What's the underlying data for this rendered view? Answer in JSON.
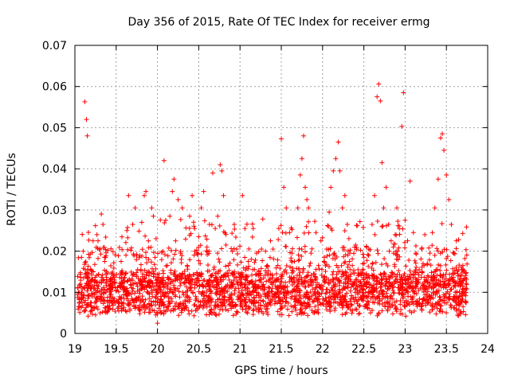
{
  "chart_data": {
    "type": "scatter",
    "title": "Day 356 of 2015, Rate Of TEC Index for receiver ermg",
    "xlabel": "GPS time / hours",
    "ylabel": "ROTI / TECUs",
    "xlim": [
      19,
      24
    ],
    "ylim": [
      0,
      0.07
    ],
    "xticks": [
      "19",
      "19.5",
      "20",
      "20.5",
      "21",
      "21.5",
      "22",
      "22.5",
      "23",
      "23.5",
      "24"
    ],
    "yticks": [
      "0",
      "0.01",
      "0.02",
      "0.03",
      "0.04",
      "0.05",
      "0.06",
      "0.07"
    ],
    "grid": true,
    "marker": "+",
    "color": "#ff0000",
    "series": [
      {
        "name": "ROTI",
        "points": [
          [
            19.03,
            0.0095
          ],
          [
            19.05,
            0.0065
          ],
          [
            19.07,
            0.012
          ],
          [
            19.08,
            0.0185
          ],
          [
            19.1,
            0.02
          ],
          [
            19.12,
            0.0563
          ],
          [
            19.14,
            0.052
          ],
          [
            19.15,
            0.048
          ],
          [
            19.17,
            0.0115
          ],
          [
            19.19,
            0.0075
          ],
          [
            19.22,
            0.0225
          ],
          [
            19.25,
            0.0105
          ],
          [
            19.28,
            0.0225
          ],
          [
            19.3,
            0.0085
          ],
          [
            19.32,
            0.029
          ],
          [
            19.34,
            0.0265
          ],
          [
            19.36,
            0.0175
          ],
          [
            19.38,
            0.0125
          ],
          [
            19.4,
            0.0065
          ],
          [
            19.43,
            0.0095
          ],
          [
            19.46,
            0.0145
          ],
          [
            19.5,
            0.0105
          ],
          [
            19.53,
            0.0065
          ],
          [
            19.56,
            0.0175
          ],
          [
            19.6,
            0.0125
          ],
          [
            19.63,
            0.025
          ],
          [
            19.65,
            0.0335
          ],
          [
            19.68,
            0.0095
          ],
          [
            19.7,
            0.0265
          ],
          [
            19.73,
            0.0305
          ],
          [
            19.76,
            0.0155
          ],
          [
            19.78,
            0.0085
          ],
          [
            19.81,
            0.027
          ],
          [
            19.84,
            0.0335
          ],
          [
            19.86,
            0.0345
          ],
          [
            19.89,
            0.0225
          ],
          [
            19.91,
            0.0125
          ],
          [
            19.93,
            0.0305
          ],
          [
            19.95,
            0.0285
          ],
          [
            19.97,
            0.0185
          ],
          [
            19.98,
            0.0045
          ],
          [
            20.0,
            0.0025
          ],
          [
            20.02,
            0.0145
          ],
          [
            20.04,
            0.009
          ],
          [
            20.06,
            0.0095
          ],
          [
            20.08,
            0.042
          ],
          [
            20.1,
            0.0275
          ],
          [
            20.12,
            0.0165
          ],
          [
            20.15,
            0.0285
          ],
          [
            20.18,
            0.0345
          ],
          [
            20.2,
            0.0375
          ],
          [
            20.22,
            0.0225
          ],
          [
            20.25,
            0.0325
          ],
          [
            20.28,
            0.0195
          ],
          [
            20.3,
            0.0305
          ],
          [
            20.33,
            0.0125
          ],
          [
            20.36,
            0.0165
          ],
          [
            20.39,
            0.0285
          ],
          [
            20.42,
            0.0335
          ],
          [
            20.45,
            0.0255
          ],
          [
            20.48,
            0.0145
          ],
          [
            20.5,
            0.0235
          ],
          [
            20.53,
            0.0305
          ],
          [
            20.56,
            0.0345
          ],
          [
            20.6,
            0.021
          ],
          [
            20.63,
            0.0265
          ],
          [
            20.67,
            0.039
          ],
          [
            20.7,
            0.0255
          ],
          [
            20.73,
            0.0285
          ],
          [
            20.76,
            0.041
          ],
          [
            20.78,
            0.0395
          ],
          [
            20.8,
            0.0335
          ],
          [
            20.83,
            0.0215
          ],
          [
            20.86,
            0.0165
          ],
          [
            20.9,
            0.0125
          ],
          [
            20.93,
            0.0265
          ],
          [
            20.96,
            0.0205
          ],
          [
            21.0,
            0.0145
          ],
          [
            21.03,
            0.0335
          ],
          [
            21.06,
            0.0255
          ],
          [
            21.1,
            0.0175
          ],
          [
            21.13,
            0.0125
          ],
          [
            21.16,
            0.0255
          ],
          [
            21.2,
            0.0195
          ],
          [
            21.23,
            0.0145
          ],
          [
            21.26,
            0.0205
          ],
          [
            21.3,
            0.0095
          ],
          [
            21.33,
            0.0165
          ],
          [
            21.37,
            0.0225
          ],
          [
            21.4,
            0.0205
          ],
          [
            21.44,
            0.0145
          ],
          [
            21.47,
            0.0255
          ],
          [
            21.5,
            0.0473
          ],
          [
            21.53,
            0.0355
          ],
          [
            21.56,
            0.0305
          ],
          [
            21.6,
            0.0245
          ],
          [
            21.63,
            0.0195
          ],
          [
            21.66,
            0.0175
          ],
          [
            21.7,
            0.0305
          ],
          [
            21.73,
            0.0385
          ],
          [
            21.75,
            0.0425
          ],
          [
            21.77,
            0.048
          ],
          [
            21.79,
            0.0355
          ],
          [
            21.81,
            0.0325
          ],
          [
            21.83,
            0.0305
          ],
          [
            21.86,
            0.0195
          ],
          [
            21.89,
            0.0145
          ],
          [
            21.92,
            0.0245
          ],
          [
            21.95,
            0.0165
          ],
          [
            21.98,
            0.0225
          ],
          [
            22.02,
            0.0185
          ],
          [
            22.05,
            0.0205
          ],
          [
            22.08,
            0.0295
          ],
          [
            22.1,
            0.0355
          ],
          [
            22.13,
            0.0395
          ],
          [
            22.16,
            0.0425
          ],
          [
            22.19,
            0.0465
          ],
          [
            22.21,
            0.0395
          ],
          [
            22.24,
            0.0305
          ],
          [
            22.27,
            0.0335
          ],
          [
            22.3,
            0.0265
          ],
          [
            22.33,
            0.0195
          ],
          [
            22.36,
            0.0165
          ],
          [
            22.4,
            0.0215
          ],
          [
            22.43,
            0.0155
          ],
          [
            22.46,
            0.0125
          ],
          [
            22.5,
            0.0185
          ],
          [
            22.53,
            0.0145
          ],
          [
            22.56,
            0.0205
          ],
          [
            22.6,
            0.0265
          ],
          [
            22.63,
            0.0335
          ],
          [
            22.66,
            0.0575
          ],
          [
            22.68,
            0.0606
          ],
          [
            22.7,
            0.0565
          ],
          [
            22.72,
            0.0415
          ],
          [
            22.74,
            0.0305
          ],
          [
            22.77,
            0.0355
          ],
          [
            22.8,
            0.0265
          ],
          [
            22.83,
            0.0225
          ],
          [
            22.86,
            0.0195
          ],
          [
            22.9,
            0.0305
          ],
          [
            22.93,
            0.0255
          ],
          [
            22.96,
            0.0503
          ],
          [
            22.98,
            0.0585
          ],
          [
            23.0,
            0.0275
          ],
          [
            23.03,
            0.0225
          ],
          [
            23.06,
            0.037
          ],
          [
            23.1,
            0.0245
          ],
          [
            23.13,
            0.0195
          ],
          [
            23.17,
            0.0155
          ],
          [
            23.2,
            0.0205
          ],
          [
            23.23,
            0.0165
          ],
          [
            23.27,
            0.0125
          ],
          [
            23.3,
            0.0195
          ],
          [
            23.33,
            0.0245
          ],
          [
            23.36,
            0.0305
          ],
          [
            23.4,
            0.0375
          ],
          [
            23.43,
            0.0475
          ],
          [
            23.45,
            0.0485
          ],
          [
            23.47,
            0.0445
          ],
          [
            23.5,
            0.0385
          ],
          [
            23.53,
            0.0325
          ],
          [
            23.56,
            0.0265
          ],
          [
            23.59,
            0.0195
          ],
          [
            23.62,
            0.0225
          ],
          [
            23.65,
            0.0155
          ],
          [
            23.68,
            0.0125
          ],
          [
            23.7,
            0.0165
          ],
          [
            23.72,
            0.0095
          ],
          [
            23.74,
            0.0075
          ]
        ]
      }
    ]
  }
}
